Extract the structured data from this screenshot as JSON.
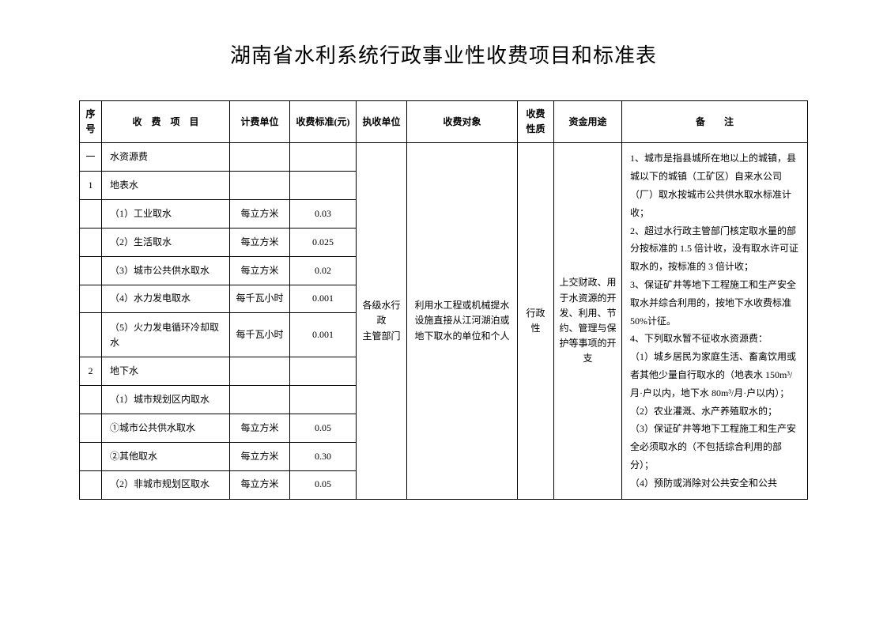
{
  "title": "湖南省水利系统行政事业性收费项目和标准表",
  "headers": {
    "seq": "序号",
    "item": "收　费　项　目",
    "unit": "计费单位",
    "std": "收费标准(元)",
    "exec": "执收单位",
    "obj": "收费对象",
    "nat": "收费性质",
    "use": "资金用途",
    "rem": "备　　注"
  },
  "rows": {
    "r0": {
      "seq": "一",
      "item": "水资源费",
      "unit": "",
      "std": ""
    },
    "r1": {
      "seq": "1",
      "item": "地表水",
      "unit": "",
      "std": ""
    },
    "r2": {
      "seq": "",
      "item": "（1）工业取水",
      "unit": "每立方米",
      "std": "0.03"
    },
    "r3": {
      "seq": "",
      "item": "（2）生活取水",
      "unit": "每立方米",
      "std": "0.025"
    },
    "r4": {
      "seq": "",
      "item": "（3）城市公共供水取水",
      "unit": "每立方米",
      "std": "0.02"
    },
    "r5": {
      "seq": "",
      "item": "（4）水力发电取水",
      "unit": "每千瓦小时",
      "std": "0.001"
    },
    "r6": {
      "seq": "",
      "item": "（5）火力发电循环冷却取水",
      "unit": "每千瓦小时",
      "std": "0.001"
    },
    "r7": {
      "seq": "2",
      "item": "地下水",
      "unit": "",
      "std": ""
    },
    "r8": {
      "seq": "",
      "item": "（1）城市规划区内取水",
      "unit": "",
      "std": ""
    },
    "r9": {
      "seq": "",
      "item": "①城市公共供水取水",
      "unit": "每立方米",
      "std": "0.05"
    },
    "r10": {
      "seq": "",
      "item": "②其他取水",
      "unit": "每立方米",
      "std": "0.30"
    },
    "r11": {
      "seq": "",
      "item": "（2）非城市规划区取水",
      "unit": "每立方米",
      "std": "0.05"
    }
  },
  "merged": {
    "exec": "各级水行政\n主管部门",
    "obj": "利用水工程或机械提水设施直接从江河湖泊或地下取水的单位和个人",
    "nat": "行政性",
    "use": "上交财政、用于水资源的开发、利用、节约、管理与保护等事项的开支",
    "rem": "1、城市是指县城所在地以上的城镇，县城以下的城镇（工矿区）自来水公司（厂）取水按城市公共供水取水标准计收；\n2、超过水行政主管部门核定取水量的部分按标准的 1.5 倍计收，没有取水许可证取水的，按标准的 3 倍计收；\n3、保证矿井等地下工程施工和生产安全取水并综合利用的，按地下水收费标准 50%计征。\n4、下列取水暂不征收水资源费：\n（1）城乡居民为家庭生活、畜禽饮用或者其他少量自行取水的（地表水 150m³/月·户以内，地下水 80m³/月·户以内）；\n（2）农业灌溉、水产养殖取水的；\n（3）保证矿井等地下工程施工和生产安全必须取水的（不包括综合利用的部分）；\n（4）预防或消除对公共安全和公共"
  }
}
